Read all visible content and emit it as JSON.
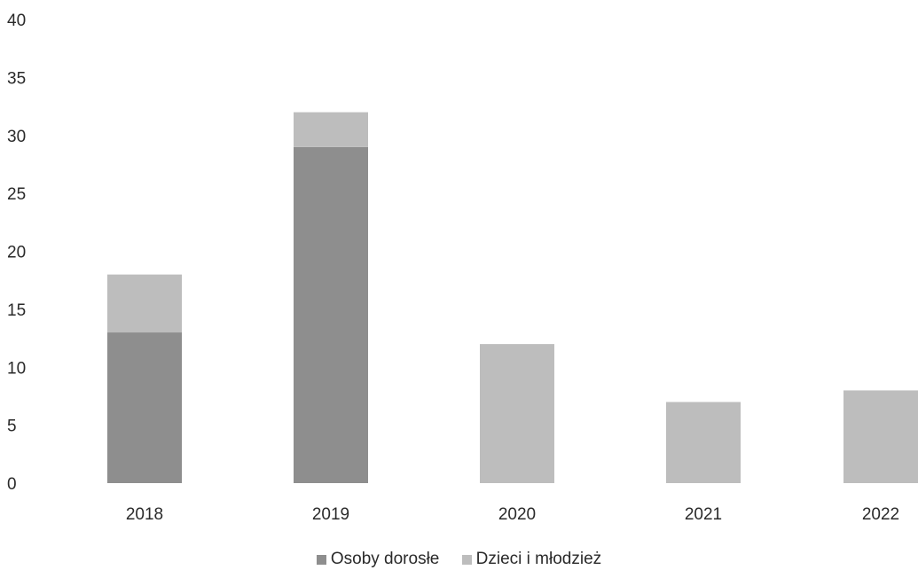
{
  "chart_data": {
    "type": "bar",
    "stacked": true,
    "categories": [
      "2018",
      "2019",
      "2020",
      "2021",
      "2022"
    ],
    "series": [
      {
        "name": "Osoby dorosłe",
        "values": [
          13,
          29,
          0,
          0,
          0
        ],
        "color": "#8e8e8e"
      },
      {
        "name": "Dzieci i młodzież",
        "values": [
          5,
          3,
          12,
          7,
          8
        ],
        "color": "#bdbdbd"
      }
    ],
    "yticks": [
      "0",
      "5",
      "10",
      "15",
      "20",
      "25",
      "30",
      "35",
      "40"
    ],
    "ylim": [
      0,
      40
    ],
    "grid": false,
    "legend_position": "bottom"
  }
}
